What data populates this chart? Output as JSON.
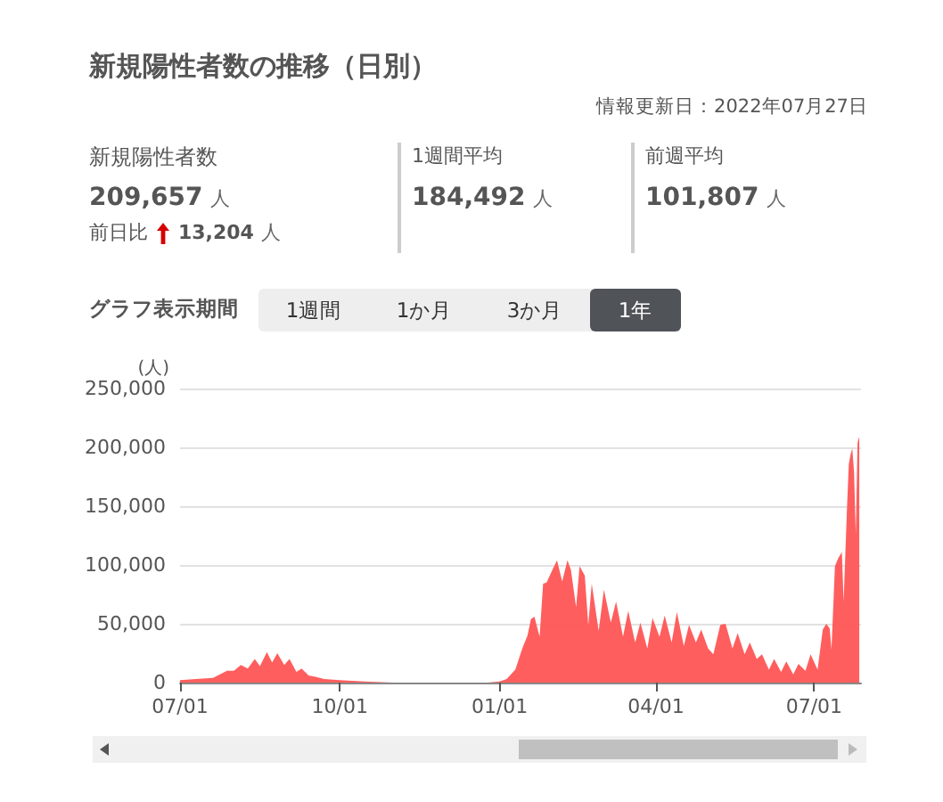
{
  "chart_data": {
    "type": "area",
    "title": "新規陽性者数の推移（日別）",
    "subtitle": "情報更新日：2022年07月27日",
    "ylabel": "(人)",
    "annotations": [
      "新規陽性者数",
      "209,657 人",
      "前日比",
      "13,204 人",
      "1週間平均",
      "184,492 人",
      "前週平均",
      "101,807 人",
      "グラフ表示期間",
      "1週間",
      "1か月",
      "3か月",
      "1年"
    ],
    "color": "#ff5555",
    "grid": "y",
    "marker": "none",
    "xlim": [
      "2021-07-01",
      "2022-07-28"
    ],
    "xticks": [
      {
        "value": "2021-07-01",
        "label": "07/01"
      },
      {
        "value": "2021-10-01",
        "label": "10/01"
      },
      {
        "value": "2022-01-01",
        "label": "01/01"
      },
      {
        "value": "2022-04-01",
        "label": "04/01"
      },
      {
        "value": "2022-07-01",
        "label": "07/01"
      }
    ],
    "ylim": [
      0,
      250000
    ],
    "yticks": [
      0,
      {
        "value": 50000,
        "label": "50,000"
      },
      {
        "value": 100000,
        "label": "100,000"
      },
      {
        "value": 150000,
        "label": "150,000"
      },
      {
        "value": 200000,
        "label": "200,000"
      },
      {
        "value": 250000,
        "label": "250,000"
      }
    ],
    "x": [
      "2021-07-01",
      "2021-07-10",
      "2021-07-20",
      "2021-07-28",
      "2021-08-01",
      "2021-08-05",
      "2021-08-09",
      "2021-08-13",
      "2021-08-16",
      "2021-08-20",
      "2021-08-23",
      "2021-08-26",
      "2021-08-30",
      "2021-09-02",
      "2021-09-06",
      "2021-09-09",
      "2021-09-13",
      "2021-09-17",
      "2021-09-22",
      "2021-10-01",
      "2021-10-15",
      "2021-11-01",
      "2021-12-01",
      "2021-12-25",
      "2022-01-01",
      "2022-01-05",
      "2022-01-10",
      "2022-01-14",
      "2022-01-17",
      "2022-01-19",
      "2022-01-21",
      "2022-01-24",
      "2022-01-26",
      "2022-01-28",
      "2022-02-01",
      "2022-02-03",
      "2022-02-06",
      "2022-02-09",
      "2022-02-11",
      "2022-02-14",
      "2022-02-16",
      "2022-02-19",
      "2022-02-21",
      "2022-02-23",
      "2022-02-27",
      "2022-03-02",
      "2022-03-06",
      "2022-03-09",
      "2022-03-13",
      "2022-03-16",
      "2022-03-20",
      "2022-03-23",
      "2022-03-27",
      "2022-03-30",
      "2022-04-03",
      "2022-04-06",
      "2022-04-10",
      "2022-04-13",
      "2022-04-17",
      "2022-04-20",
      "2022-04-24",
      "2022-04-27",
      "2022-05-01",
      "2022-05-04",
      "2022-05-08",
      "2022-05-11",
      "2022-05-15",
      "2022-05-18",
      "2022-05-22",
      "2022-05-25",
      "2022-05-29",
      "2022-06-01",
      "2022-06-05",
      "2022-06-08",
      "2022-06-12",
      "2022-06-15",
      "2022-06-19",
      "2022-06-22",
      "2022-06-26",
      "2022-06-29",
      "2022-07-03",
      "2022-07-06",
      "2022-07-08",
      "2022-07-10",
      "2022-07-11",
      "2022-07-13",
      "2022-07-15",
      "2022-07-17",
      "2022-07-18",
      "2022-07-20",
      "2022-07-21",
      "2022-07-22",
      "2022-07-23",
      "2022-07-24",
      "2022-07-25",
      "2022-07-26",
      "2022-07-27"
    ],
    "values": [
      2000,
      3000,
      4000,
      10000,
      10000,
      15000,
      12000,
      20000,
      14000,
      26000,
      17000,
      25000,
      15000,
      20000,
      9000,
      12000,
      6000,
      5000,
      3000,
      2000,
      1000,
      0,
      0,
      0,
      1000,
      3000,
      11000,
      29000,
      40000,
      54000,
      56000,
      39000,
      84000,
      85000,
      98000,
      104000,
      86000,
      104000,
      96000,
      64000,
      99000,
      91000,
      49000,
      84000,
      44000,
      79000,
      51000,
      69000,
      39000,
      61000,
      34000,
      51000,
      29000,
      55000,
      39000,
      57000,
      34000,
      60000,
      31000,
      49000,
      34000,
      45000,
      29000,
      24000,
      49000,
      50000,
      29000,
      42000,
      24000,
      34000,
      20000,
      24000,
      11000,
      20000,
      9000,
      18000,
      7000,
      16000,
      10000,
      24000,
      11000,
      45000,
      50000,
      46000,
      28000,
      99000,
      106000,
      111000,
      69000,
      151000,
      186000,
      194000,
      199000,
      179000,
      126000,
      204000,
      209000
    ]
  }
}
